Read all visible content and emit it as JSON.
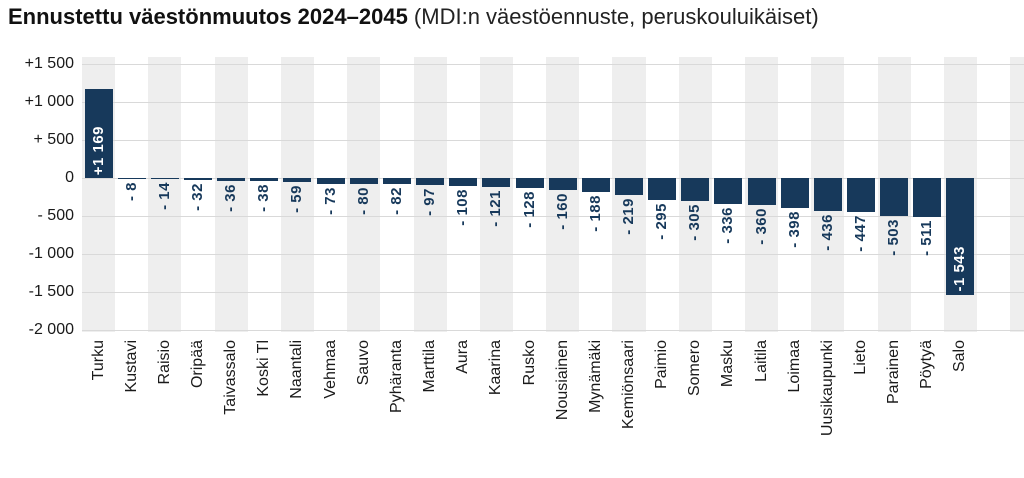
{
  "title": {
    "main": "Ennustettu väestönmuutos 2024–2045",
    "suffix": " (MDI:n väestöennuste, peruskouluikäiset)"
  },
  "chart_data": {
    "type": "bar",
    "title": "Ennustettu väestönmuutos 2024–2045 (MDI:n väestöennuste, peruskouluikäiset)",
    "xlabel": "",
    "ylabel": "",
    "ylim": [
      1600,
      -2030
    ],
    "grid": true,
    "legend": false,
    "band_pattern": "alternating columns, first column shaded",
    "categories": [
      "Turku",
      "Kustavi",
      "Raisio",
      "Oripää",
      "Taivassalo",
      "Koski Tl",
      "Naantali",
      "Vehmaa",
      "Sauvo",
      "Pyhäranta",
      "Marttila",
      "Aura",
      "Kaarina",
      "Rusko",
      "Nousiainen",
      "Mynämäki",
      "Kemiönsaari",
      "Paimio",
      "Somero",
      "Masku",
      "Laitila",
      "Loimaa",
      "Uusikaupunki",
      "Lieto",
      "Parainen",
      "Pöytyä",
      "Salo"
    ],
    "values": [
      1169,
      -8,
      -14,
      -32,
      -36,
      -38,
      -59,
      -73,
      -80,
      -82,
      -97,
      -108,
      -121,
      -128,
      -160,
      -188,
      -219,
      -295,
      -305,
      -336,
      -360,
      -398,
      -436,
      -447,
      -503,
      -511,
      -1543
    ],
    "value_labels": [
      "+1 169",
      "- 8",
      "- 14",
      "- 32",
      "- 36",
      "- 38",
      "- 59",
      "- 73",
      "- 80",
      "- 82",
      "- 97",
      "- 108",
      "- 121",
      "- 128",
      "- 160",
      "- 188",
      "- 219",
      "- 295",
      "- 305",
      "- 336",
      "- 360",
      "- 398",
      "- 436",
      "- 447",
      "- 503",
      "- 511",
      "-1 543"
    ],
    "y_ticks": [
      {
        "value": 1500,
        "label": "+1 500"
      },
      {
        "value": 1000,
        "label": "+1 000"
      },
      {
        "value": 500,
        "label": "+ 500"
      },
      {
        "value": 0,
        "label": "0"
      },
      {
        "value": -500,
        "label": "- 500"
      },
      {
        "value": -1000,
        "label": "-1 000"
      },
      {
        "value": -1500,
        "label": "-1 500"
      },
      {
        "value": -2000,
        "label": "-2 000"
      }
    ],
    "colors": {
      "bar": "#17395b",
      "value_label_outside": "#17395b",
      "value_label_inside": "#ffffff",
      "band": "#eeeeee",
      "band_alt": "#ffffff",
      "gridline": "#d9d9d9",
      "axis_text": "#1a1a1a"
    }
  }
}
